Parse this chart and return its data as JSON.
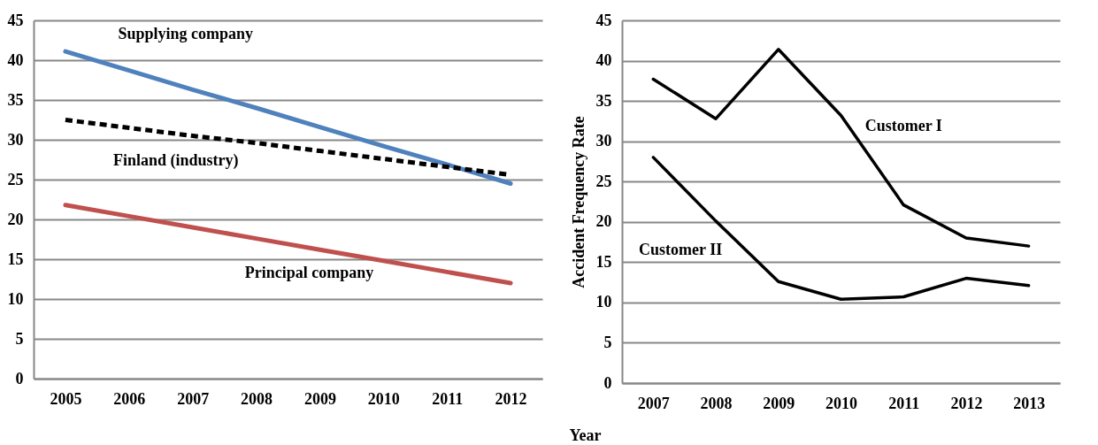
{
  "chart_data": [
    {
      "type": "line",
      "categories": [
        "2005",
        "2006",
        "2007",
        "2008",
        "2009",
        "2010",
        "2011",
        "2012"
      ],
      "ylim": [
        0,
        45
      ],
      "yticks": [
        0,
        5,
        10,
        15,
        20,
        25,
        30,
        35,
        40,
        45
      ],
      "grid": "y",
      "series": [
        {
          "name": "Supplying company",
          "color": "#4f81bd",
          "line_style": "solid",
          "values": [
            41.1,
            38.7,
            36.3,
            34.0,
            31.6,
            29.2,
            26.9,
            24.5
          ]
        },
        {
          "name": "Finland (industry)",
          "color": "#000000",
          "line_style": "dashed",
          "values": [
            32.5,
            31.5,
            30.5,
            29.6,
            28.6,
            27.6,
            26.6,
            25.6
          ]
        },
        {
          "name": "Principal company",
          "color": "#c0504d",
          "line_style": "solid",
          "values": [
            21.8,
            20.4,
            19.0,
            17.6,
            16.2,
            14.8,
            13.4,
            12.0
          ]
        }
      ]
    },
    {
      "type": "line",
      "categories": [
        "2007",
        "2008",
        "2009",
        "2010",
        "2011",
        "2012",
        "2013"
      ],
      "xlabel": "Year",
      "ylabel": "Accident Frequency Rate",
      "ylim": [
        0,
        45
      ],
      "yticks": [
        0,
        5,
        10,
        15,
        20,
        25,
        30,
        35,
        40,
        45
      ],
      "grid": "y",
      "series": [
        {
          "name": "Customer I",
          "color": "#000000",
          "values": [
            37.7,
            32.8,
            41.4,
            33.2,
            22.1,
            18.0,
            17.0
          ]
        },
        {
          "name": "Customer II",
          "color": "#000000",
          "values": [
            28.0,
            20.1,
            12.6,
            10.4,
            10.7,
            13.0,
            12.1
          ]
        }
      ]
    }
  ]
}
